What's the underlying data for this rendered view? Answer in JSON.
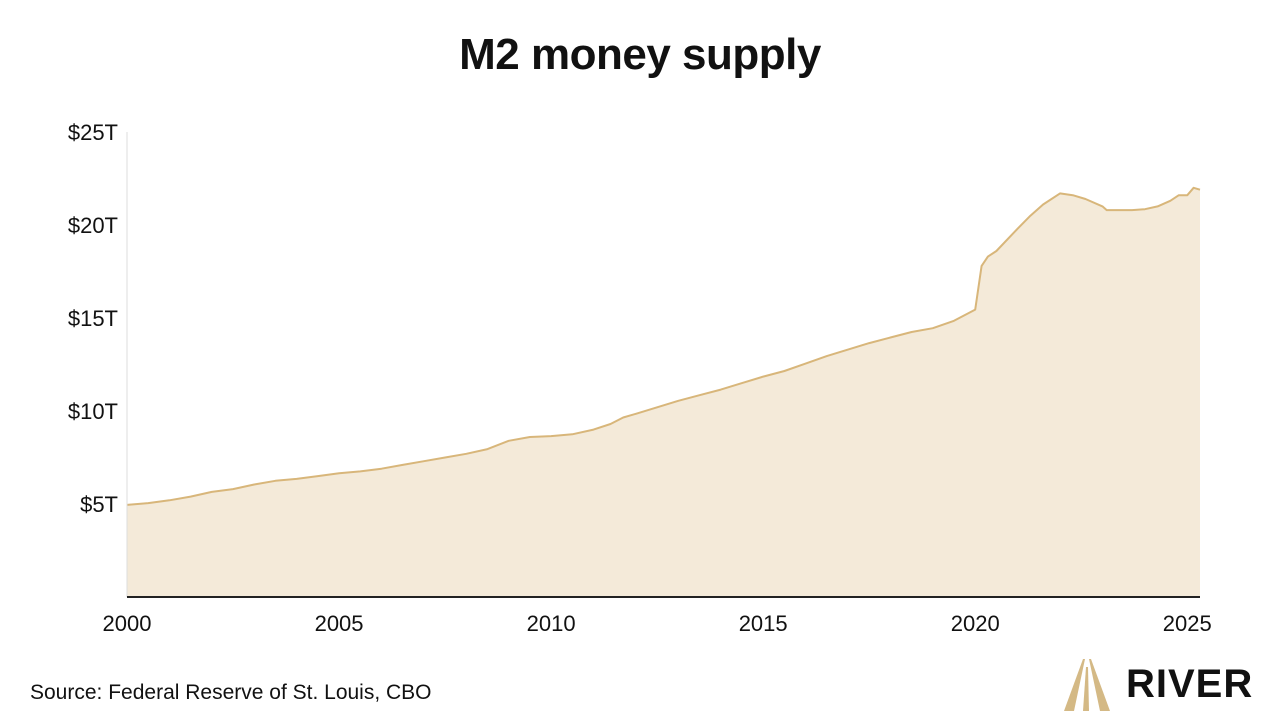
{
  "title": "M2 money supply",
  "source": "Source: Federal Reserve of St. Louis, CBO",
  "brand": {
    "name": "RIVER",
    "logo_icon": "river-logo-icon"
  },
  "colors": {
    "area_fill": "#f4ead9",
    "line": "#d8b67a",
    "axis": "#222222",
    "text": "#111111",
    "brand_gold": "#d4b985"
  },
  "chart_data": {
    "type": "area",
    "title": "M2 money supply",
    "xlabel": "",
    "ylabel": "",
    "xlim": [
      2000,
      2025.3
    ],
    "ylim": [
      0,
      25
    ],
    "x_ticks": [
      2000,
      2005,
      2010,
      2015,
      2020,
      2025
    ],
    "x_tick_labels": [
      "2000",
      "2005",
      "2010",
      "2015",
      "2020",
      "2025"
    ],
    "y_ticks": [
      5,
      10,
      15,
      20,
      25
    ],
    "y_tick_labels": [
      "$5T",
      "$10T",
      "$15T",
      "$20T",
      "$25T"
    ],
    "grid": false,
    "legend": "none",
    "series": [
      {
        "unit": "trillion USD",
        "x": [
          2000,
          2000.5,
          2001,
          2001.5,
          2002,
          2002.5,
          2003,
          2003.5,
          2004,
          2004.5,
          2005,
          2005.5,
          2006,
          2006.5,
          2007,
          2007.5,
          2008,
          2008.5,
          2009,
          2009.5,
          2010,
          2010.5,
          2011,
          2011.4,
          2011.7,
          2012,
          2012.5,
          2013,
          2013.5,
          2014,
          2014.5,
          2015,
          2015.5,
          2016,
          2016.5,
          2017,
          2017.5,
          2018,
          2018.5,
          2019,
          2019.5,
          2020,
          2020.15,
          2020.3,
          2020.5,
          2021,
          2021.3,
          2021.6,
          2022,
          2022.3,
          2022.6,
          2023,
          2023.1,
          2023.4,
          2023.7,
          2024,
          2024.3,
          2024.6,
          2024.8,
          2025,
          2025.15,
          2025.3
        ],
        "y": [
          4.95,
          5.05,
          5.2,
          5.4,
          5.65,
          5.8,
          6.05,
          6.25,
          6.35,
          6.5,
          6.65,
          6.75,
          6.9,
          7.1,
          7.3,
          7.5,
          7.7,
          7.95,
          8.4,
          8.6,
          8.65,
          8.75,
          9.0,
          9.3,
          9.65,
          9.85,
          10.2,
          10.55,
          10.85,
          11.15,
          11.5,
          11.85,
          12.15,
          12.55,
          12.95,
          13.3,
          13.65,
          13.95,
          14.25,
          14.45,
          14.85,
          15.45,
          17.8,
          18.3,
          18.6,
          19.8,
          20.5,
          21.1,
          21.7,
          21.6,
          21.4,
          21.0,
          20.8,
          20.8,
          20.8,
          20.85,
          21.0,
          21.3,
          21.6,
          21.6,
          22.0,
          21.9
        ]
      }
    ]
  }
}
